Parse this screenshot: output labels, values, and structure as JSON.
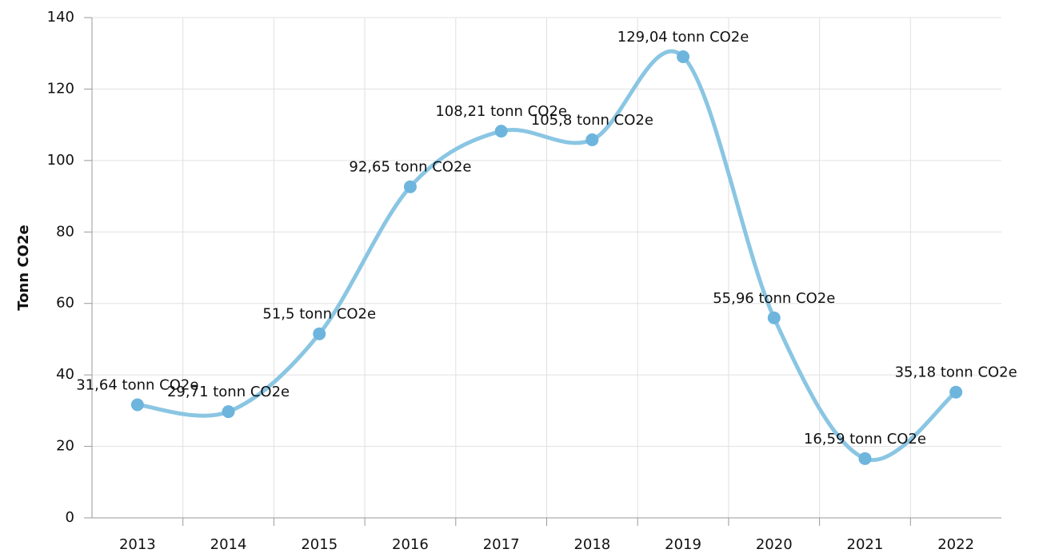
{
  "chart_data": {
    "type": "line",
    "y_label": "Tonn CO2e",
    "categories": [
      "2013",
      "2014",
      "2015",
      "2016",
      "2017",
      "2018",
      "2019",
      "2020",
      "2021",
      "2022"
    ],
    "series": [
      {
        "name": "Tonn CO2e",
        "color": "#8ac6e3",
        "marker_color": "#6db5dd",
        "values": [
          31.64,
          29.71,
          51.5,
          92.65,
          108.21,
          105.8,
          129.04,
          55.96,
          16.59,
          35.18
        ],
        "value_labels": [
          "31,64 tonn CO2e",
          "29,71 tonn CO2e",
          "51,5 tonn CO2e",
          "92,65 tonn CO2e",
          "108,21 tonn CO2e",
          "105,8 tonn CO2e",
          "129,04 tonn CO2e",
          "55,96 tonn CO2e",
          "16,59 tonn CO2e",
          "35,18 tonn CO2e"
        ]
      }
    ],
    "ylim": [
      0,
      140
    ],
    "yticks": [
      0,
      20,
      40,
      60,
      80,
      100,
      120,
      140
    ],
    "grid": true
  }
}
